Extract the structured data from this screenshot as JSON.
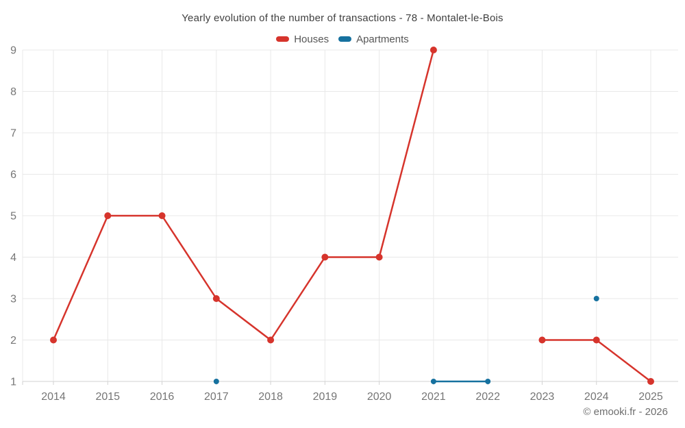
{
  "page": {
    "footer": "© emooki.fr - 2026"
  },
  "chart_data": {
    "type": "line",
    "title": "Yearly evolution of the number of transactions - 78 - Montalet-le-Bois",
    "x": [
      "2014",
      "2015",
      "2016",
      "2017",
      "2018",
      "2019",
      "2020",
      "2021",
      "2022",
      "2023",
      "2024",
      "2025"
    ],
    "series": [
      {
        "name": "Houses",
        "color": "#d6342c",
        "marker_radius": 5,
        "line_width": 2.5,
        "values": [
          2,
          5,
          5,
          3,
          2,
          4,
          4,
          9,
          null,
          2,
          2,
          1
        ]
      },
      {
        "name": "Apartments",
        "color": "#16719f",
        "marker_radius": 4,
        "line_width": 2.5,
        "values": [
          null,
          null,
          null,
          1,
          null,
          null,
          null,
          1,
          1,
          null,
          3,
          null
        ]
      }
    ],
    "ylim": [
      1,
      9
    ],
    "yticks": [
      1,
      2,
      3,
      4,
      5,
      6,
      7,
      8,
      9
    ],
    "grid": true,
    "legend_position": "top",
    "colors": {
      "gridline": "#e8e8e8",
      "axis_line": "#d2d2d2",
      "tick_text": "#757575",
      "title_text": "#3f3f3f",
      "legend_text": "#565656",
      "footer_text": "#6e6e6e"
    }
  }
}
